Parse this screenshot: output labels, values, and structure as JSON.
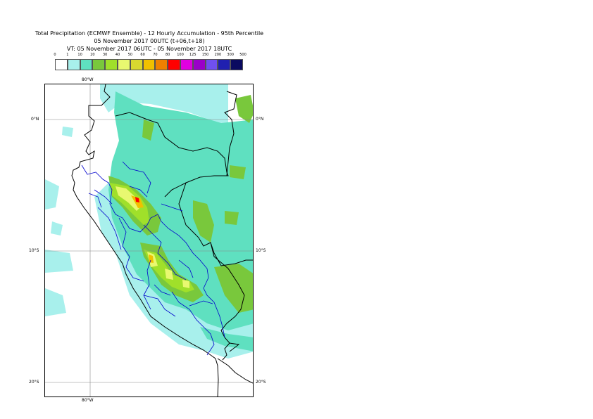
{
  "title": {
    "line1": "Total Precipitation (ECMWF Ensemble) - 12 Hourly Accumulation - 95th Percentile",
    "line2": "05 November 2017 00UTC (t+06,t+18)",
    "line3": "VT: 05 November 2017 06UTC - 05 November 2017 18UTC"
  },
  "legend": {
    "thresholds": [
      "0",
      "1",
      "10",
      "20",
      "30",
      "40",
      "50",
      "60",
      "70",
      "80",
      "100",
      "125",
      "150",
      "200",
      "300",
      "500"
    ],
    "colors": [
      "#ffffff",
      "#a8f0ec",
      "#5fe0c0",
      "#79c83c",
      "#a0e02a",
      "#e8f870",
      "#d8d830",
      "#f0c000",
      "#f08000",
      "#ff0000",
      "#e000e0",
      "#9a00c8",
      "#7050f0",
      "#2020b0",
      "#0a0a60"
    ]
  },
  "map": {
    "lon_labels": {
      "top": "80°W",
      "bottom": "80°W"
    },
    "lat_labels": {
      "eq_left": "0°N",
      "eq_right": "0°N",
      "s10_left": "10°S",
      "s10_right": "10°S",
      "s20_left": "20°S",
      "s20_right": "20°S"
    },
    "colors": {
      "ocean_light": "#a8f0ec",
      "land_teal": "#5fe0c0",
      "green": "#79c83c",
      "lime": "#a0e02a",
      "yellow": "#e8f870",
      "orange": "#f0c000",
      "red": "#ff0000",
      "border_black": "#000000",
      "border_blue": "#0000cc",
      "grid": "#888888"
    }
  }
}
